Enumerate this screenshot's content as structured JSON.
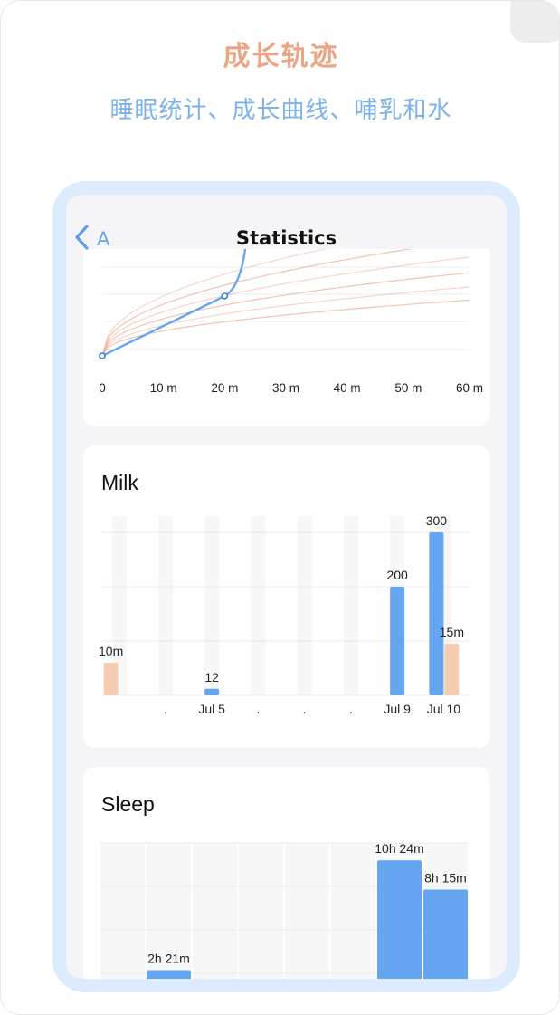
{
  "hero": {
    "title": "成长轨迹",
    "subtitle": "睡眠统计、成长曲线、哺乳和水"
  },
  "colors": {
    "title": "#eba484",
    "subtitle": "#7fb3e8",
    "accent_blue": "#66a6f0",
    "accent_peach": "#f5cdb0",
    "device_frame": "#dcebfd",
    "percentile_curve": "#eba484"
  },
  "nav": {
    "back_icon": "chevron-left-icon",
    "back_label": "A",
    "title": "Statistics"
  },
  "growth_chart": {
    "type": "line",
    "x_tick_labels": [
      "0",
      "10 m",
      "20 m",
      "30 m",
      "40 m",
      "50 m",
      "60 m"
    ],
    "xlim": [
      0,
      60
    ],
    "percentile_curves": 6,
    "series_points": [
      [
        0,
        0
      ],
      [
        20,
        1
      ],
      [
        23.5,
        1.9
      ]
    ],
    "grid": true
  },
  "milk_card": {
    "title": "Milk"
  },
  "sleep_card": {
    "title": "Sleep"
  },
  "chart_data": [
    {
      "type": "bar",
      "title": "Milk",
      "categories": [
        "",
        ".",
        "Jul 5",
        ".",
        ".",
        ".",
        "Jul 9",
        "Jul 10"
      ],
      "ylim": [
        0,
        330
      ],
      "series": [
        {
          "color": "#66a6f0",
          "values": [
            null,
            null,
            12,
            null,
            null,
            null,
            200,
            300
          ],
          "labels": [
            null,
            null,
            "12",
            null,
            null,
            null,
            "200",
            "300"
          ]
        },
        {
          "color": "#f5cdb0",
          "values": [
            60,
            null,
            null,
            null,
            null,
            null,
            null,
            95
          ],
          "labels": [
            "10m",
            null,
            null,
            null,
            null,
            null,
            null,
            "15m"
          ]
        }
      ],
      "grid": true
    },
    {
      "type": "bar",
      "title": "Sleep",
      "categories": [
        "",
        "",
        "",
        "",
        "",
        "",
        "",
        ""
      ],
      "y_unit": "minutes",
      "ylim": [
        0,
        700
      ],
      "series": [
        {
          "color": "#66a6f0",
          "values": [
            null,
            141,
            null,
            null,
            null,
            null,
            624,
            495
          ],
          "labels": [
            null,
            "2h 21m",
            null,
            null,
            null,
            null,
            "10h 24m",
            "8h 15m"
          ]
        }
      ],
      "grid": true
    }
  ]
}
